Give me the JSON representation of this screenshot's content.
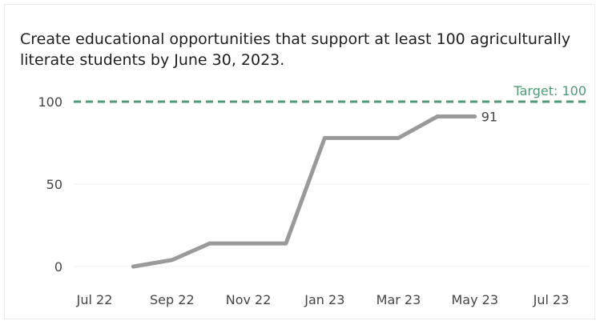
{
  "chart_data": {
    "type": "line",
    "title": "Create educational opportunities that support at least 100 agriculturally literate students by June 30, 2023.",
    "xlabel": "",
    "ylabel": "",
    "ylim": [
      0,
      100
    ],
    "y_ticks": [
      0,
      50,
      100
    ],
    "x_ticks": [
      {
        "label": "Jul 22",
        "date": "2022-07-01"
      },
      {
        "label": "Sep 22",
        "date": "2022-09-01"
      },
      {
        "label": "Nov 22",
        "date": "2022-11-01"
      },
      {
        "label": "Jan 23",
        "date": "2023-01-01"
      },
      {
        "label": "Mar 23",
        "date": "2023-03-01"
      },
      {
        "label": "May 23",
        "date": "2023-05-01"
      },
      {
        "label": "Jul 23",
        "date": "2023-07-01"
      }
    ],
    "series": [
      {
        "color": "#9a9a9a",
        "points": [
          {
            "date": "2022-08-01",
            "value": 0
          },
          {
            "date": "2022-09-01",
            "value": 4
          },
          {
            "date": "2022-10-01",
            "value": 14
          },
          {
            "date": "2022-11-01",
            "value": 14
          },
          {
            "date": "2022-12-01",
            "value": 14
          },
          {
            "date": "2023-01-01",
            "value": 78
          },
          {
            "date": "2023-02-01",
            "value": 78
          },
          {
            "date": "2023-03-01",
            "value": 78
          },
          {
            "date": "2023-04-01",
            "value": 91
          },
          {
            "date": "2023-05-01",
            "value": 91
          }
        ],
        "end_label": "91"
      }
    ],
    "target": {
      "value": 100,
      "label": "Target: 100",
      "color": "#4f9a76"
    },
    "grid": true
  }
}
